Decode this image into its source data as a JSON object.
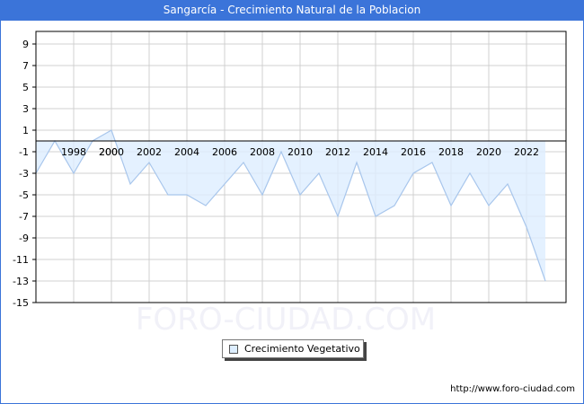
{
  "header": {
    "title": "Sangarcía - Crecimiento Natural de la Poblacion"
  },
  "legend": {
    "label": "Crecimiento Vegetativo"
  },
  "footer": {
    "source": "http://www.foro-ciudad.com"
  },
  "watermark": "FORO-CIUDAD.COM",
  "colors": {
    "title_bg": "#3b74d9",
    "area_fill": "#ddeeff",
    "line": "#a8c6ec",
    "grid": "#d0d0d0"
  },
  "chart_data": {
    "type": "area",
    "title": "Sangarcía - Crecimiento Natural de la Poblacion",
    "xlabel": "",
    "ylabel": "",
    "ylim": [
      -15,
      10
    ],
    "yticks": [
      9,
      7,
      5,
      3,
      1,
      -1,
      -3,
      -5,
      -7,
      -9,
      -11,
      -13,
      -15
    ],
    "xtick_labels": [
      "1998",
      "2000",
      "2002",
      "2004",
      "2006",
      "2008",
      "2010",
      "2012",
      "2014",
      "2016",
      "2018",
      "2020",
      "2022"
    ],
    "grid": true,
    "legend_position": "bottom",
    "x": [
      1996,
      1997,
      1998,
      1999,
      2000,
      2001,
      2002,
      2003,
      2004,
      2005,
      2006,
      2007,
      2008,
      2009,
      2010,
      2011,
      2012,
      2013,
      2014,
      2015,
      2016,
      2017,
      2018,
      2019,
      2020,
      2021,
      2022,
      2023
    ],
    "series": [
      {
        "name": "Crecimiento Vegetativo",
        "values": [
          -3,
          0,
          -3,
          0,
          1,
          -4,
          -2,
          -5,
          -5,
          -6,
          -4,
          -2,
          -5,
          -1,
          -5,
          -3,
          -7,
          -2,
          -7,
          -6,
          -3,
          -2,
          -6,
          -3,
          -6,
          -4,
          -8,
          -13
        ]
      }
    ]
  }
}
